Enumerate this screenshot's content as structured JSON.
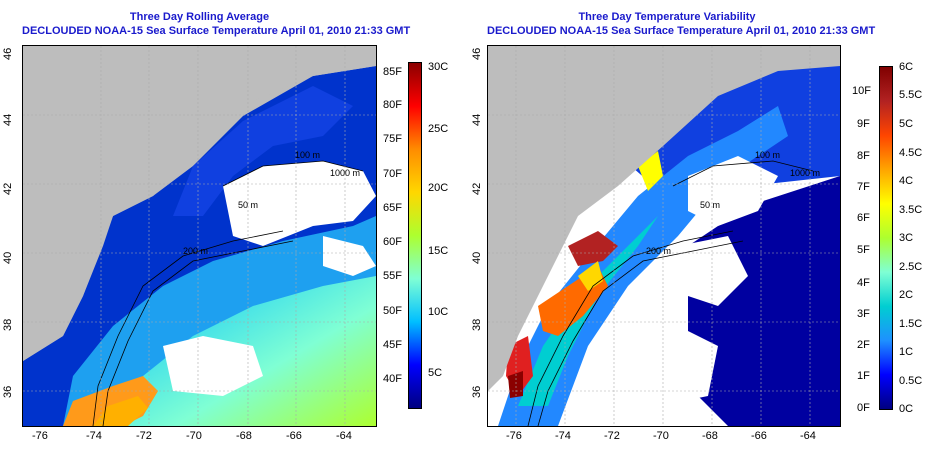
{
  "left_panel": {
    "title_line1": "Three Day Rolling Average",
    "title_line2": "DECLOUDED NOAA-15 Sea Surface Temperature April 01, 2010 21:33 GMT",
    "x_ticks": [
      "-76",
      "-74",
      "-72",
      "-70",
      "-68",
      "-66",
      "-64"
    ],
    "y_ticks": [
      "36",
      "38",
      "40",
      "42",
      "44",
      "46"
    ],
    "isobath_labels": [
      "100 m",
      "1000 m",
      "200 m",
      "50 m"
    ],
    "colorbar": {
      "left_labels": [
        "85F",
        "80F",
        "75F",
        "70F",
        "65F",
        "60F",
        "55F",
        "50F",
        "45F",
        "40F"
      ],
      "right_labels": [
        "30C",
        "25C",
        "20C",
        "15C",
        "10C",
        "5C"
      ],
      "colors": [
        "#000080",
        "#0000ff",
        "#00bfff",
        "#7fffd4",
        "#adff2f",
        "#ffd700",
        "#ff8c00",
        "#ff0000",
        "#8b0000"
      ]
    }
  },
  "right_panel": {
    "title_line1": "Three Day Temperature Variability",
    "title_line2": "DECLOUDED NOAA-15 Sea Surface Temperature April 01, 2010 21:33 GMT",
    "x_ticks": [
      "-76",
      "-74",
      "-72",
      "-70",
      "-68",
      "-66",
      "-64"
    ],
    "y_ticks": [
      "36",
      "38",
      "40",
      "42",
      "44",
      "46"
    ],
    "isobath_labels": [
      "100 m",
      "1000 m",
      "200 m",
      "50 m"
    ],
    "colorbar": {
      "left_labels": [
        "10F",
        "9F",
        "8F",
        "7F",
        "6F",
        "5F",
        "4F",
        "3F",
        "2F",
        "1F",
        "0F"
      ],
      "right_labels": [
        "6C",
        "5.5C",
        "5C",
        "4.5C",
        "4C",
        "3.5C",
        "3C",
        "2.5C",
        "2C",
        "1.5C",
        "1C",
        "0.5C",
        "0C"
      ],
      "colors": [
        "#000080",
        "#0000ff",
        "#1e90ff",
        "#00ced1",
        "#7fffd4",
        "#adff2f",
        "#ffff00",
        "#ffa500",
        "#ff4500",
        "#b22222",
        "#800000"
      ]
    }
  },
  "colors": {
    "title": "#1a1acc",
    "land": "#bdbdbd",
    "no_data": "#ffffff"
  }
}
